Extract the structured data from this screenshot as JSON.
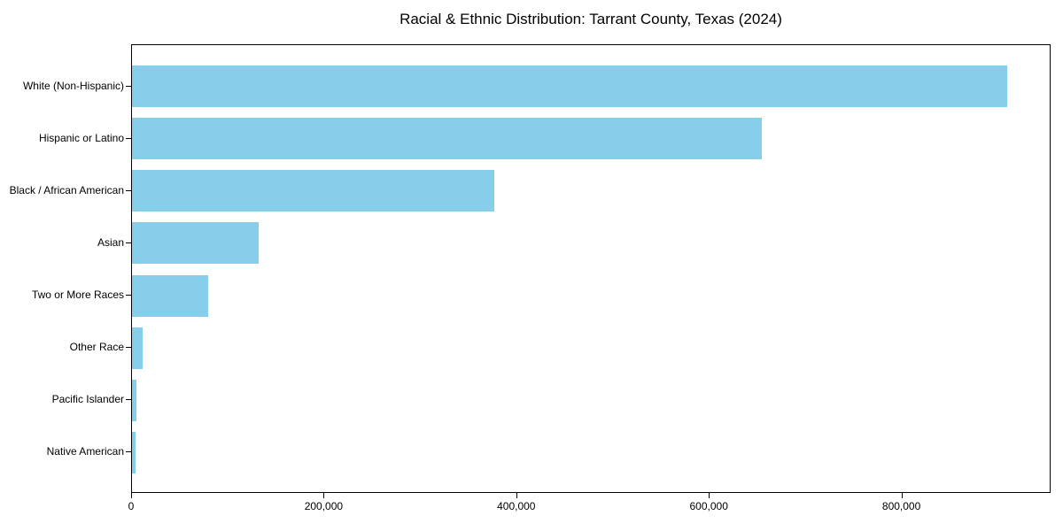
{
  "chart_data": {
    "type": "bar",
    "orientation": "horizontal",
    "title": "Racial & Ethnic Distribution: Tarrant County, Texas (2024)",
    "categories": [
      "White (Non-Hispanic)",
      "Hispanic or Latino",
      "Black / African American",
      "Asian",
      "Two or More Races",
      "Other Race",
      "Pacific Islander",
      "Native American"
    ],
    "values": [
      909000,
      654000,
      376000,
      132000,
      79000,
      10800,
      4200,
      4000
    ],
    "xlabel": "",
    "ylabel": "",
    "xlim": [
      0,
      954900
    ],
    "xticks": {
      "values": [
        0,
        200000,
        400000,
        600000,
        800000
      ],
      "labels": [
        "0",
        "200,000",
        "400,000",
        "600,000",
        "800,000"
      ]
    },
    "bar_color": "#87CEEB",
    "background_color": "#FFFFFF",
    "grid": false,
    "legend": null,
    "sort": "descending"
  }
}
